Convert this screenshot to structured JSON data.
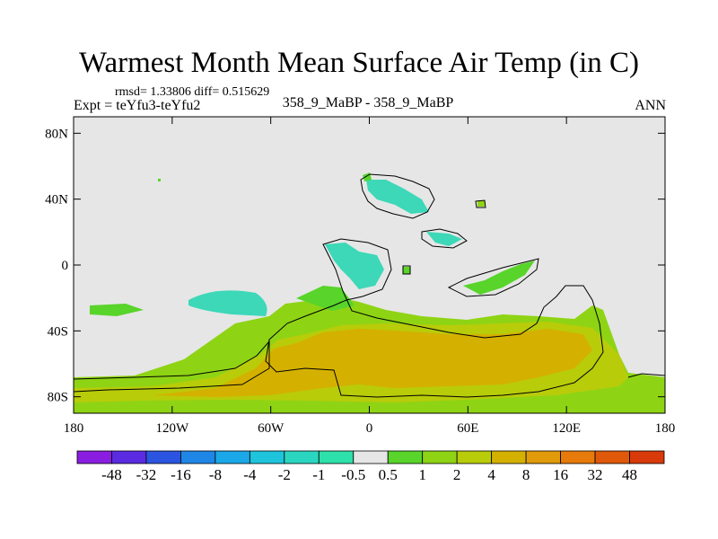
{
  "title": "Warmest Month Mean Surface Air Temp (in C)",
  "stats": "rmsd= 1.33806 diff= 0.515629",
  "expt_label": "Expt = teYfu3-teYfu2",
  "center_label": "358_9_MaBP - 358_9_MaBP",
  "season_label": "ANN",
  "map": {
    "lon_range": [
      -180,
      180
    ],
    "lat_range": [
      -90,
      90
    ],
    "y_ticks": [
      "80N",
      "40N",
      "0",
      "40S",
      "80S"
    ],
    "x_ticks": [
      "180",
      "120W",
      "60W",
      "0",
      "60E",
      "120E",
      "180"
    ],
    "background_color": "#e6e6e6",
    "regions": [
      {
        "name": "south-polar-ocean-anomaly",
        "color": "#8ed414"
      },
      {
        "name": "south-continent-warm-core",
        "color": "#d4b100"
      },
      {
        "name": "southwest-pacific-cool-patch",
        "color": "#3cd8b8"
      },
      {
        "name": "northern-landmass-anomalies",
        "color": "#3cd8b8"
      }
    ]
  },
  "colorbar": {
    "labels": [
      "-48",
      "-32",
      "-16",
      "-8",
      "-4",
      "-2",
      "-1",
      "-0.5",
      "0.5",
      "1",
      "2",
      "4",
      "8",
      "16",
      "32",
      "48"
    ],
    "colors": [
      "#8a1ee0",
      "#5a2be0",
      "#2b55e0",
      "#1f86e6",
      "#1aa8e8",
      "#1ec4dc",
      "#2bd6c0",
      "#2ee0aa",
      "#e6e6e6",
      "#58d42a",
      "#8ed414",
      "#b8cc0a",
      "#d4b100",
      "#e09a0a",
      "#e67a0a",
      "#e0580a",
      "#d83a0a"
    ]
  }
}
